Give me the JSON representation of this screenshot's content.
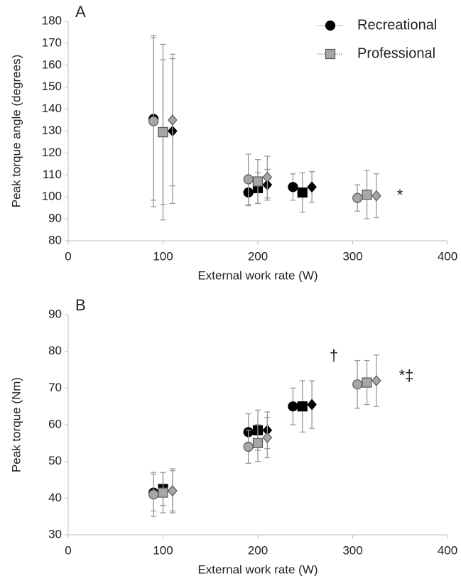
{
  "chart_data": [
    {
      "type": "scatter",
      "panel_label": "A",
      "xlabel": "External work rate (W)",
      "ylabel": "Peak torque angle (degrees)",
      "xlim": [
        0,
        400
      ],
      "xticks": [
        0,
        100,
        200,
        300,
        400
      ],
      "ylim": [
        80,
        180
      ],
      "yticks": [
        80,
        90,
        100,
        110,
        120,
        130,
        140,
        150,
        160,
        170,
        180
      ],
      "legend": "upper right",
      "series": [
        {
          "name": "Recreational",
          "color": "#000000",
          "x": [
            90,
            100,
            110,
            190,
            200,
            210,
            237,
            247,
            257
          ],
          "values": [
            135.5,
            129.5,
            130,
            102,
            104,
            105.5,
            104.5,
            102,
            104.5
          ],
          "errors": [
            37,
            33,
            33,
            6,
            7,
            7,
            6,
            9,
            7
          ],
          "markers": [
            "circle",
            "square",
            "diamond",
            "circle",
            "square",
            "diamond",
            "circle",
            "square",
            "diamond"
          ]
        },
        {
          "name": "Professional",
          "color": "#a6a6a6",
          "x": [
            90,
            100,
            110,
            190,
            200,
            210,
            305,
            315,
            325
          ],
          "values": [
            134.5,
            129.5,
            135,
            108,
            107,
            109,
            99.5,
            101,
            100.5
          ],
          "errors": [
            39,
            40,
            30,
            11.5,
            10,
            9.5,
            6,
            11,
            10
          ],
          "markers": [
            "circle",
            "square",
            "diamond",
            "circle",
            "square",
            "diamond",
            "circle",
            "square",
            "diamond"
          ]
        }
      ],
      "annotations": [
        "*"
      ]
    },
    {
      "type": "scatter",
      "panel_label": "B",
      "xlabel": "External work rate (W)",
      "ylabel": "Peak torque (Nm)",
      "xlim": [
        0,
        400
      ],
      "xticks": [
        0,
        100,
        200,
        300,
        400
      ],
      "ylim": [
        30,
        90
      ],
      "yticks": [
        30,
        40,
        50,
        60,
        70,
        80,
        90
      ],
      "series": [
        {
          "color": "#000000",
          "x": [
            90,
            100,
            110,
            190,
            200,
            210,
            237,
            247,
            257
          ],
          "values": [
            41.5,
            42.5,
            42,
            58,
            58.5,
            58.5,
            65,
            65,
            65.5
          ],
          "errors": [
            5,
            4.5,
            5.5,
            5,
            5.5,
            5,
            5,
            7,
            6.5
          ],
          "markers": [
            "circle",
            "square",
            "diamond",
            "circle",
            "square",
            "diamond",
            "circle",
            "square",
            "diamond"
          ]
        },
        {
          "color": "#a6a6a6",
          "x": [
            90,
            100,
            110,
            190,
            200,
            210,
            305,
            315,
            325
          ],
          "values": [
            41,
            41.5,
            42,
            54,
            55,
            56.5,
            71,
            71.5,
            72
          ],
          "errors": [
            6,
            5.5,
            6,
            4.5,
            5,
            5.5,
            6.5,
            6,
            7
          ],
          "markers": [
            "circle",
            "square",
            "diamond",
            "circle",
            "square",
            "diamond",
            "circle",
            "square",
            "diamond"
          ]
        }
      ],
      "annotations": [
        "†",
        "*‡"
      ]
    }
  ]
}
